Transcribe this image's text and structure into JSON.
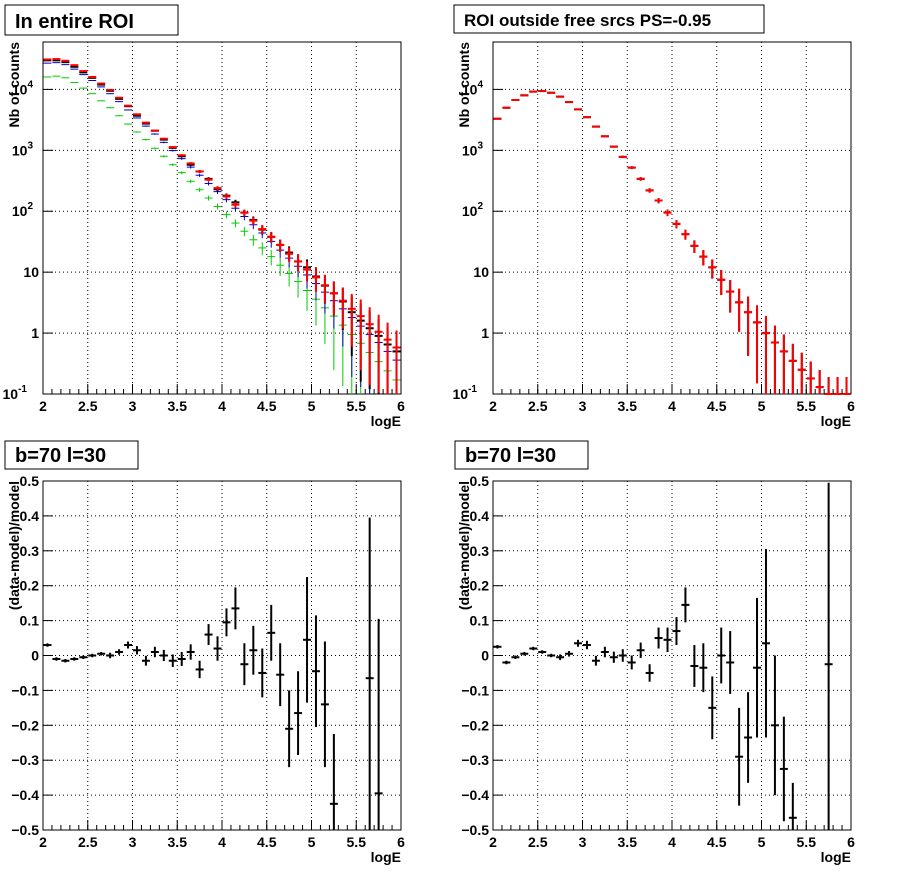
{
  "colors": {
    "black": "#000000",
    "red": "#ff0000",
    "blue": "#0000cc",
    "green": "#00cc00",
    "grid": "#000000"
  },
  "chart_data": [
    {
      "type": "scatter",
      "title": "In entire ROI",
      "xlabel": "logE",
      "ylabel": "Nb of counts",
      "yscale": "log",
      "xlim": [
        2,
        6
      ],
      "ylim": [
        0.1,
        60000
      ],
      "xticks": [
        "2",
        "2.5",
        "3",
        "3.5",
        "4",
        "4.5",
        "5",
        "5.5",
        "6"
      ],
      "yticks": [
        {
          "value": 10000,
          "label": "10",
          "sup": "4"
        },
        {
          "value": 1000,
          "label": "10",
          "sup": "3"
        },
        {
          "value": 100,
          "label": "10",
          "sup": "2"
        },
        {
          "value": 10,
          "label": "10",
          "sup": ""
        },
        {
          "value": 1,
          "label": "1",
          "sup": ""
        },
        {
          "value": 0.1,
          "label": "10",
          "sup": "-1"
        }
      ],
      "grid": true,
      "series": [
        {
          "color": "green",
          "x": [
            2.05,
            2.15,
            2.25,
            2.35,
            2.45,
            2.55,
            2.65,
            2.75,
            2.85,
            2.95,
            3.05,
            3.15,
            3.25,
            3.35,
            3.45,
            3.55,
            3.65,
            3.75,
            3.85,
            3.95,
            4.05,
            4.15,
            4.25,
            4.35,
            4.45,
            4.55,
            4.65,
            4.75,
            4.85,
            4.95,
            5.05,
            5.15,
            5.25,
            5.35,
            5.45,
            5.55,
            5.65,
            5.75,
            5.85,
            5.95
          ],
          "y": [
            16000,
            16500,
            15500,
            13000,
            10500,
            8500,
            6500,
            5000,
            3700,
            2700,
            2000,
            1500,
            1080,
            800,
            580,
            430,
            310,
            225,
            165,
            120,
            88,
            64,
            47,
            34,
            25,
            18,
            13,
            9.5,
            7,
            5,
            3.6,
            2.6,
            1.9,
            1.35,
            0.95,
            0.68,
            0.48,
            0.34,
            0.24,
            0.17
          ]
        },
        {
          "color": "blue",
          "x": [
            2.05,
            2.15,
            2.25,
            2.35,
            2.45,
            2.55,
            2.65,
            2.75,
            2.85,
            2.95,
            3.05,
            3.15,
            3.25,
            3.35,
            3.45,
            3.55,
            3.65,
            3.75,
            3.85,
            3.95,
            4.05,
            4.15,
            4.25,
            4.35,
            4.45,
            4.55,
            4.65,
            4.75,
            4.85,
            4.95,
            5.05,
            5.15,
            5.25,
            5.35,
            5.45,
            5.55,
            5.65,
            5.75,
            5.85,
            5.95
          ],
          "y": [
            27000,
            27500,
            25500,
            21500,
            17500,
            14000,
            11000,
            8500,
            6300,
            4600,
            3400,
            2500,
            1850,
            1350,
            990,
            730,
            530,
            390,
            285,
            210,
            155,
            112,
            82,
            60,
            44,
            32,
            23,
            17,
            12.5,
            9,
            6.5,
            4.7,
            3.4,
            2.5,
            1.8,
            1.3,
            0.95,
            0.7,
            0.5,
            0.36
          ]
        },
        {
          "color": "black",
          "x": [
            2.05,
            2.15,
            2.25,
            2.35,
            2.45,
            2.55,
            2.65,
            2.75,
            2.85,
            2.95,
            3.05,
            3.15,
            3.25,
            3.35,
            3.45,
            3.55,
            3.65,
            3.75,
            3.85,
            3.95,
            4.05,
            4.15,
            4.25,
            4.35,
            4.45,
            4.55,
            4.65,
            4.75,
            4.85,
            4.95,
            5.05,
            5.15,
            5.25,
            5.35,
            5.45,
            5.55,
            5.65,
            5.75,
            5.85,
            5.95
          ],
          "y": [
            30000,
            30000,
            28000,
            23500,
            19000,
            15500,
            12000,
            9500,
            7000,
            5300,
            3700,
            2750,
            2100,
            1500,
            1100,
            800,
            580,
            450,
            340,
            230,
            180,
            140,
            95,
            72,
            50,
            38,
            28,
            21,
            15,
            12,
            8.5,
            6,
            4.5,
            3.3,
            2.2,
            1.6,
            1.2,
            0.9,
            0.65,
            0.5
          ]
        },
        {
          "color": "red",
          "x": [
            2.05,
            2.15,
            2.25,
            2.35,
            2.45,
            2.55,
            2.65,
            2.75,
            2.85,
            2.95,
            3.05,
            3.15,
            3.25,
            3.35,
            3.45,
            3.55,
            3.65,
            3.75,
            3.85,
            3.95,
            4.05,
            4.15,
            4.25,
            4.35,
            4.45,
            4.55,
            4.65,
            4.75,
            4.85,
            4.95,
            5.05,
            5.15,
            5.25,
            5.35,
            5.45,
            5.55,
            5.65,
            5.75,
            5.85,
            5.95
          ],
          "y": [
            31000,
            31500,
            29500,
            25000,
            20000,
            16000,
            12500,
            9800,
            7300,
            5400,
            3900,
            2850,
            2100,
            1550,
            1130,
            830,
            610,
            450,
            330,
            240,
            175,
            128,
            95,
            70,
            51,
            38,
            28,
            20,
            15,
            11,
            8.2,
            6.1,
            4.5,
            3.4,
            2.5,
            1.9,
            1.4,
            1.05,
            0.78,
            0.58
          ]
        }
      ]
    },
    {
      "type": "scatter",
      "title": "ROI outside free srcs PS=-0.95",
      "xlabel": "logE",
      "ylabel": "Nb of counts",
      "yscale": "log",
      "xlim": [
        2,
        6
      ],
      "ylim": [
        0.1,
        60000
      ],
      "xticks": [
        "2",
        "2.5",
        "3",
        "3.5",
        "4",
        "4.5",
        "5",
        "5.5",
        "6"
      ],
      "yticks": [
        {
          "value": 10000,
          "label": "10",
          "sup": "4"
        },
        {
          "value": 1000,
          "label": "10",
          "sup": "3"
        },
        {
          "value": 100,
          "label": "10",
          "sup": "2"
        },
        {
          "value": 10,
          "label": "10",
          "sup": ""
        },
        {
          "value": 1,
          "label": "1",
          "sup": ""
        },
        {
          "value": 0.1,
          "label": "10",
          "sup": "-1"
        }
      ],
      "grid": true,
      "series": [
        {
          "color": "black",
          "x": [
            2.05,
            2.15,
            2.25,
            2.35,
            2.45,
            2.55,
            2.65,
            2.75,
            2.85,
            2.95,
            3.05,
            3.15,
            3.25,
            3.35,
            3.45,
            3.55,
            3.65,
            3.75,
            3.85,
            3.95,
            4.05,
            4.15,
            4.25,
            4.35,
            4.45,
            4.55,
            4.65,
            4.75,
            4.85,
            4.95,
            5.05,
            5.15,
            5.25,
            5.35,
            5.45,
            5.55,
            5.65,
            5.75,
            5.85,
            5.95
          ],
          "y": [
            3300,
            5000,
            6700,
            8000,
            9200,
            9400,
            8800,
            7600,
            6200,
            4700,
            3500,
            2450,
            1700,
            1150,
            780,
            520,
            340,
            220,
            150,
            95,
            62,
            42,
            27,
            18,
            12,
            7.5,
            4.8,
            3.2,
            2.2,
            1.5,
            1.0,
            0.7,
            0.5,
            0.35,
            0.25,
            0.18,
            0.13,
            0.1,
            0.1,
            0.1
          ]
        },
        {
          "color": "red",
          "x": [
            2.05,
            2.15,
            2.25,
            2.35,
            2.45,
            2.55,
            2.65,
            2.75,
            2.85,
            2.95,
            3.05,
            3.15,
            3.25,
            3.35,
            3.45,
            3.55,
            3.65,
            3.75,
            3.85,
            3.95,
            4.05,
            4.15,
            4.25,
            4.35,
            4.45,
            4.55,
            4.65,
            4.75,
            4.85,
            4.95,
            5.05,
            5.15,
            5.25,
            5.35,
            5.45,
            5.55,
            5.65,
            5.75,
            5.85,
            5.95
          ],
          "y": [
            3300,
            5000,
            6700,
            8000,
            9200,
            9400,
            8800,
            7600,
            6200,
            4700,
            3500,
            2450,
            1700,
            1150,
            780,
            520,
            340,
            220,
            150,
            95,
            62,
            42,
            27,
            18,
            12,
            7.5,
            4.8,
            3.2,
            2.2,
            1.5,
            1.0,
            0.7,
            0.5,
            0.35,
            0.25,
            0.18,
            0.13,
            0.1,
            0.1,
            0.1
          ]
        }
      ]
    },
    {
      "type": "scatter",
      "title": "b=70 l=30",
      "xlabel": "logE",
      "ylabel": "(data-model)/model",
      "yscale": "linear",
      "xlim": [
        2,
        6
      ],
      "ylim": [
        -0.5,
        0.5
      ],
      "xticks": [
        "2",
        "2.5",
        "3",
        "3.5",
        "4",
        "4.5",
        "5",
        "5.5",
        "6"
      ],
      "yticks": [
        {
          "value": 0.5,
          "label": "0.5"
        },
        {
          "value": 0.4,
          "label": "0.4"
        },
        {
          "value": 0.3,
          "label": "0.3"
        },
        {
          "value": 0.2,
          "label": "0.2"
        },
        {
          "value": 0.1,
          "label": "0.1"
        },
        {
          "value": 0,
          "label": "0"
        },
        {
          "value": -0.1,
          "label": "−0.1"
        },
        {
          "value": -0.2,
          "label": "−0.2"
        },
        {
          "value": -0.3,
          "label": "−0.3"
        },
        {
          "value": -0.4,
          "label": "−0.4"
        },
        {
          "value": -0.5,
          "label": "−0.5"
        }
      ],
      "grid": true,
      "series": [
        {
          "color": "black",
          "x": [
            2.05,
            2.15,
            2.25,
            2.35,
            2.45,
            2.55,
            2.65,
            2.75,
            2.85,
            2.95,
            3.05,
            3.15,
            3.25,
            3.35,
            3.45,
            3.55,
            3.65,
            3.75,
            3.85,
            3.95,
            4.05,
            4.15,
            4.25,
            4.35,
            4.45,
            4.55,
            4.65,
            4.75,
            4.85,
            4.95,
            5.05,
            5.15,
            5.25,
            5.65,
            5.75
          ],
          "y": [
            0.03,
            -0.01,
            -0.015,
            -0.01,
            -0.005,
            0.0,
            0.005,
            0.0,
            0.01,
            0.03,
            0.015,
            -0.015,
            0.01,
            0.0,
            -0.015,
            -0.01,
            0.01,
            -0.04,
            0.06,
            0.02,
            0.095,
            0.135,
            -0.025,
            0.015,
            -0.05,
            0.065,
            -0.055,
            -0.21,
            -0.165,
            0.045,
            -0.045,
            -0.14,
            -0.425,
            -0.065,
            -0.395
          ],
          "err": [
            0.005,
            0.005,
            0.005,
            0.005,
            0.005,
            0.005,
            0.005,
            0.008,
            0.008,
            0.01,
            0.012,
            0.014,
            0.015,
            0.016,
            0.018,
            0.02,
            0.022,
            0.025,
            0.03,
            0.035,
            0.04,
            0.06,
            0.06,
            0.07,
            0.07,
            0.08,
            0.09,
            0.11,
            0.12,
            0.18,
            0.16,
            0.18,
            0.2,
            0.46,
            0.5
          ]
        }
      ]
    },
    {
      "type": "scatter",
      "title": "b=70 l=30",
      "xlabel": "logE",
      "ylabel": "(data-model)/model",
      "yscale": "linear",
      "xlim": [
        2,
        6
      ],
      "ylim": [
        -0.5,
        0.5
      ],
      "xticks": [
        "2",
        "2.5",
        "3",
        "3.5",
        "4",
        "4.5",
        "5",
        "5.5",
        "6"
      ],
      "yticks": [
        {
          "value": 0.5,
          "label": "0.5"
        },
        {
          "value": 0.4,
          "label": "0.4"
        },
        {
          "value": 0.3,
          "label": "0.3"
        },
        {
          "value": 0.2,
          "label": "0.2"
        },
        {
          "value": 0.1,
          "label": "0.1"
        },
        {
          "value": 0,
          "label": "0"
        },
        {
          "value": -0.1,
          "label": "−0.1"
        },
        {
          "value": -0.2,
          "label": "−0.2"
        },
        {
          "value": -0.3,
          "label": "−0.3"
        },
        {
          "value": -0.4,
          "label": "−0.4"
        },
        {
          "value": -0.5,
          "label": "−0.5"
        }
      ],
      "grid": true,
      "series": [
        {
          "color": "black",
          "x": [
            2.05,
            2.15,
            2.25,
            2.35,
            2.45,
            2.55,
            2.65,
            2.75,
            2.85,
            2.95,
            3.05,
            3.15,
            3.25,
            3.35,
            3.45,
            3.55,
            3.65,
            3.75,
            3.85,
            3.95,
            4.05,
            4.15,
            4.25,
            4.35,
            4.45,
            4.55,
            4.65,
            4.75,
            4.85,
            4.95,
            5.05,
            5.15,
            5.25,
            5.35,
            5.75
          ],
          "y": [
            0.025,
            -0.02,
            -0.005,
            0.005,
            0.02,
            0.01,
            0.0,
            -0.005,
            0.005,
            0.035,
            0.03,
            -0.015,
            0.01,
            -0.005,
            0.0,
            -0.02,
            0.015,
            -0.05,
            0.05,
            0.045,
            0.07,
            0.145,
            -0.03,
            -0.035,
            -0.15,
            0.0,
            -0.02,
            -0.29,
            -0.235,
            -0.035,
            0.035,
            -0.2,
            -0.325,
            -0.465,
            -0.025
          ],
          "err": [
            0.005,
            0.005,
            0.005,
            0.005,
            0.005,
            0.005,
            0.005,
            0.008,
            0.008,
            0.01,
            0.012,
            0.014,
            0.015,
            0.016,
            0.018,
            0.02,
            0.022,
            0.025,
            0.03,
            0.035,
            0.04,
            0.05,
            0.06,
            0.07,
            0.09,
            0.08,
            0.09,
            0.14,
            0.13,
            0.2,
            0.27,
            0.2,
            0.15,
            0.1,
            0.52
          ]
        }
      ]
    }
  ]
}
